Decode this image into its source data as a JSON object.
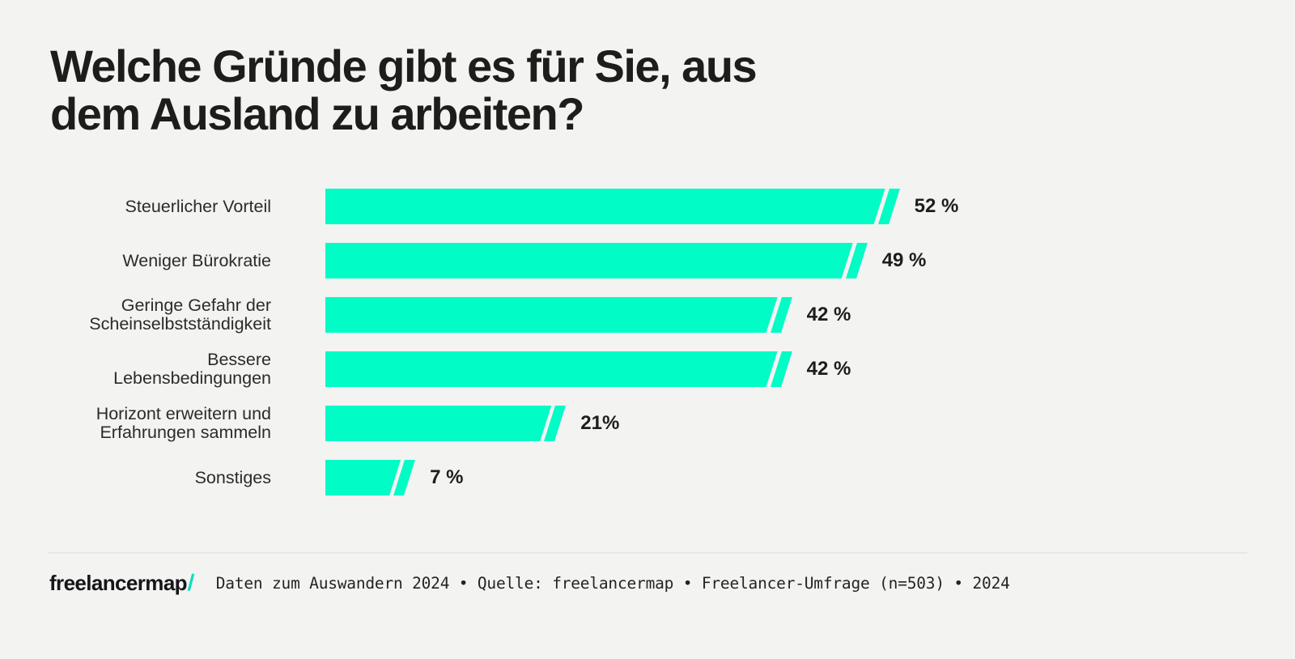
{
  "page": {
    "background_color": "#f3f3f2",
    "accent_color": "#02fcc6",
    "text_color": "#1d1d1b"
  },
  "header": {
    "title_line1": "Welche Gründe gibt es für Sie, aus",
    "title_line2": "dem Ausland zu arbeiten?"
  },
  "chart_data": {
    "type": "bar",
    "orientation": "horizontal",
    "title": "Welche Gründe gibt es für Sie, aus dem Ausland zu arbeiten?",
    "categories": [
      "Steuerlicher Vorteil",
      "Weniger Bürokratie",
      "Geringe Gefahr der Scheinselbstständigkeit",
      "Bessere Lebensbedingungen",
      "Horizont erweitern und Erfahrungen sammeln",
      "Sonstiges"
    ],
    "values": [
      52,
      49,
      42,
      42,
      21,
      7
    ],
    "display_values": [
      "52 %",
      "49 %",
      "42 %",
      "42 %",
      "21%",
      "7 %"
    ],
    "unit": "%",
    "bar_color": "#02fcc6",
    "value_label_position": "right-of-bar",
    "axes_visible": false,
    "grid": false,
    "legend": false
  },
  "footer": {
    "logo_text": "freelancermap",
    "logo_slash": "/",
    "caption": "Daten zum Auswandern 2024 • Quelle: freelancermap • Freelancer-Umfrage (n=503) • 2024"
  }
}
